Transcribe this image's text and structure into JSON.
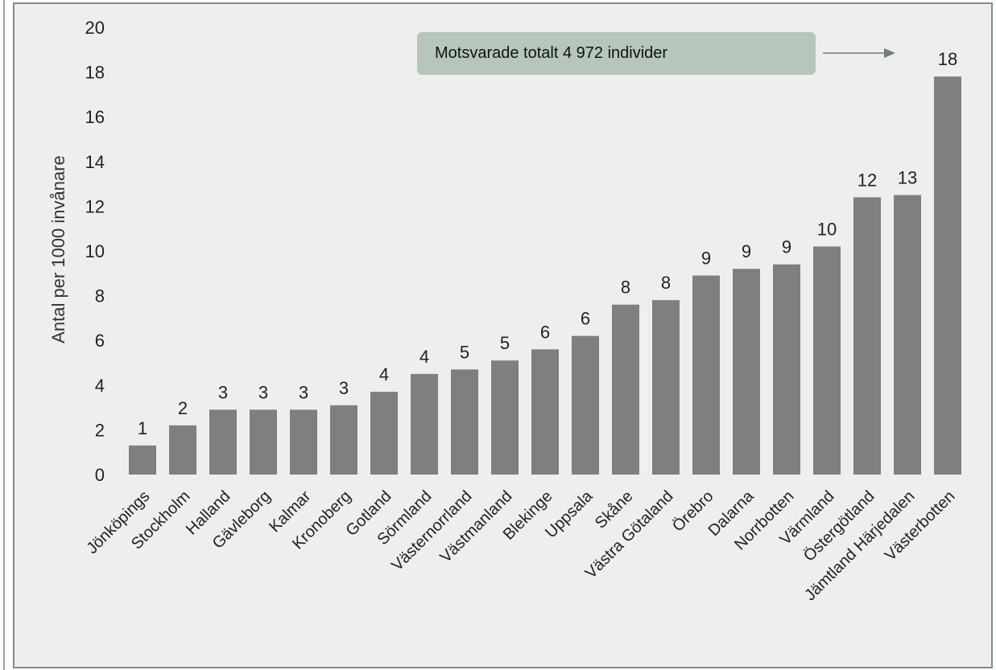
{
  "chart_data": {
    "type": "bar",
    "ylabel": "Antal per 1000 invånare",
    "ylim": [
      0,
      20
    ],
    "yticks": [
      0,
      2,
      4,
      6,
      8,
      10,
      12,
      14,
      16,
      18,
      20
    ],
    "grid": false,
    "categories": [
      "Jönköpings",
      "Stockholm",
      "Halland",
      "Gävleborg",
      "Kalmar",
      "Kronoberg",
      "Gotland",
      "Sörmland",
      "Västernorrland",
      "Västmanland",
      "Blekinge",
      "Uppsala",
      "Skåne",
      "Västra Götaland",
      "Örebro",
      "Dalarna",
      "Norrbotten",
      "Värmland",
      "Östergötland",
      "Jämtland Härjedalen",
      "Västerbotten"
    ],
    "values": [
      1.3,
      2.2,
      2.9,
      2.9,
      2.9,
      3.1,
      3.7,
      4.5,
      4.7,
      5.1,
      5.6,
      6.2,
      7.6,
      7.8,
      8.9,
      9.2,
      9.4,
      10.2,
      12.4,
      12.5,
      17.8
    ],
    "data_labels": [
      "1",
      "2",
      "3",
      "3",
      "3",
      "3",
      "4",
      "4",
      "5",
      "5",
      "6",
      "6",
      "8",
      "8",
      "9",
      "9",
      "9",
      "10",
      "12",
      "13",
      "18"
    ],
    "annotation": "Motsvarade totalt 4 972  individer",
    "bar_color": "#7f7f7f",
    "annotation_color": "#b7c6bb"
  }
}
